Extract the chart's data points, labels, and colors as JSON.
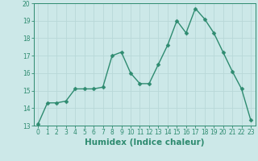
{
  "x": [
    0,
    1,
    2,
    3,
    4,
    5,
    6,
    7,
    8,
    9,
    10,
    11,
    12,
    13,
    14,
    15,
    16,
    17,
    18,
    19,
    20,
    21,
    22,
    23
  ],
  "y": [
    13.1,
    14.3,
    14.3,
    14.4,
    15.1,
    15.1,
    15.1,
    15.2,
    17.0,
    17.2,
    16.0,
    15.4,
    15.4,
    16.5,
    17.6,
    19.0,
    18.3,
    19.7,
    19.1,
    18.3,
    17.2,
    16.1,
    15.1,
    13.3
  ],
  "line_color": "#2e8b70",
  "marker_color": "#2e8b70",
  "bg_color": "#cce8e8",
  "grid_color": "#b8d8d8",
  "xlabel": "Humidex (Indice chaleur)",
  "ylim": [
    13,
    20
  ],
  "xlim_min": -0.5,
  "xlim_max": 23.5,
  "yticks": [
    13,
    14,
    15,
    16,
    17,
    18,
    19,
    20
  ],
  "xticks": [
    0,
    1,
    2,
    3,
    4,
    5,
    6,
    7,
    8,
    9,
    10,
    11,
    12,
    13,
    14,
    15,
    16,
    17,
    18,
    19,
    20,
    21,
    22,
    23
  ],
  "tick_fontsize": 5.5,
  "label_fontsize": 7.5,
  "line_width": 1.0,
  "marker_size": 2.5
}
